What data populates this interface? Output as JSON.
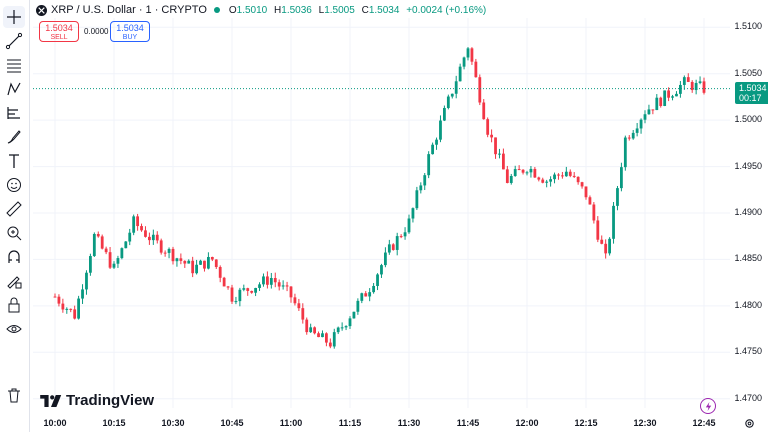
{
  "header": {
    "symbol": "XRP / U.S. Dollar · 1 · CRYPTO",
    "o_label": "O",
    "o_value": "1.5010",
    "h_label": "H",
    "h_value": "1.5036",
    "l_label": "L",
    "l_value": "1.5005",
    "c_label": "C",
    "c_value": "1.5034",
    "change": "+0.0024 (+0.16%)"
  },
  "trade": {
    "sell_price": "1.5034",
    "sell_label": "SELL",
    "spread": "0.0000",
    "buy_price": "1.5034",
    "buy_label": "BUY"
  },
  "price_tag": {
    "price": "1.5034",
    "countdown": "00:17"
  },
  "branding": {
    "name": "TradingView"
  },
  "colors": {
    "up": "#089981",
    "down": "#f23645",
    "accent": "#2962ff"
  },
  "toolbar": [
    "crosshair-icon",
    "trend-line-icon",
    "fib-icon",
    "pattern-icon",
    "projection-icon",
    "brush-icon",
    "text-icon",
    "emoji-icon",
    "ruler-icon",
    "zoom-icon",
    "magnet-icon",
    "lock-drawings-icon",
    "lock-icon",
    "eye-icon",
    "trash-icon"
  ],
  "chart_data": {
    "type": "candlestick",
    "yaxis_ticks": [
      "1.5100",
      "1.5050",
      "1.5000",
      "1.4950",
      "1.4900",
      "1.4850",
      "1.4800",
      "1.4750",
      "1.4700"
    ],
    "xaxis_ticks": [
      "10:00",
      "10:15",
      "10:30",
      "10:45",
      "11:00",
      "11:15",
      "11:30",
      "11:45",
      "12:00",
      "12:15",
      "12:30",
      "12:45"
    ],
    "ylim": [
      1.47,
      1.511
    ],
    "grid": true,
    "close_x": [
      "10:00",
      "10:05",
      "10:10",
      "10:15",
      "10:20",
      "10:25",
      "10:30",
      "10:35",
      "10:40",
      "10:45",
      "10:50",
      "10:55",
      "11:00",
      "11:05",
      "11:10",
      "11:15",
      "11:20",
      "11:25",
      "11:30",
      "11:35",
      "11:40",
      "11:45",
      "11:50",
      "11:55",
      "12:00",
      "12:05",
      "12:10",
      "12:15",
      "12:20",
      "12:25",
      "12:30",
      "12:35",
      "12:40",
      "12:45"
    ],
    "close": [
      1.481,
      1.479,
      1.4875,
      1.484,
      1.489,
      1.487,
      1.4855,
      1.484,
      1.485,
      1.481,
      1.482,
      1.483,
      1.481,
      1.477,
      1.476,
      1.479,
      1.482,
      1.486,
      1.489,
      1.496,
      1.502,
      1.508,
      1.499,
      1.4935,
      1.495,
      1.4935,
      1.4945,
      1.492,
      1.485,
      1.498,
      1.501,
      1.5025,
      1.504,
      1.5034
    ]
  }
}
